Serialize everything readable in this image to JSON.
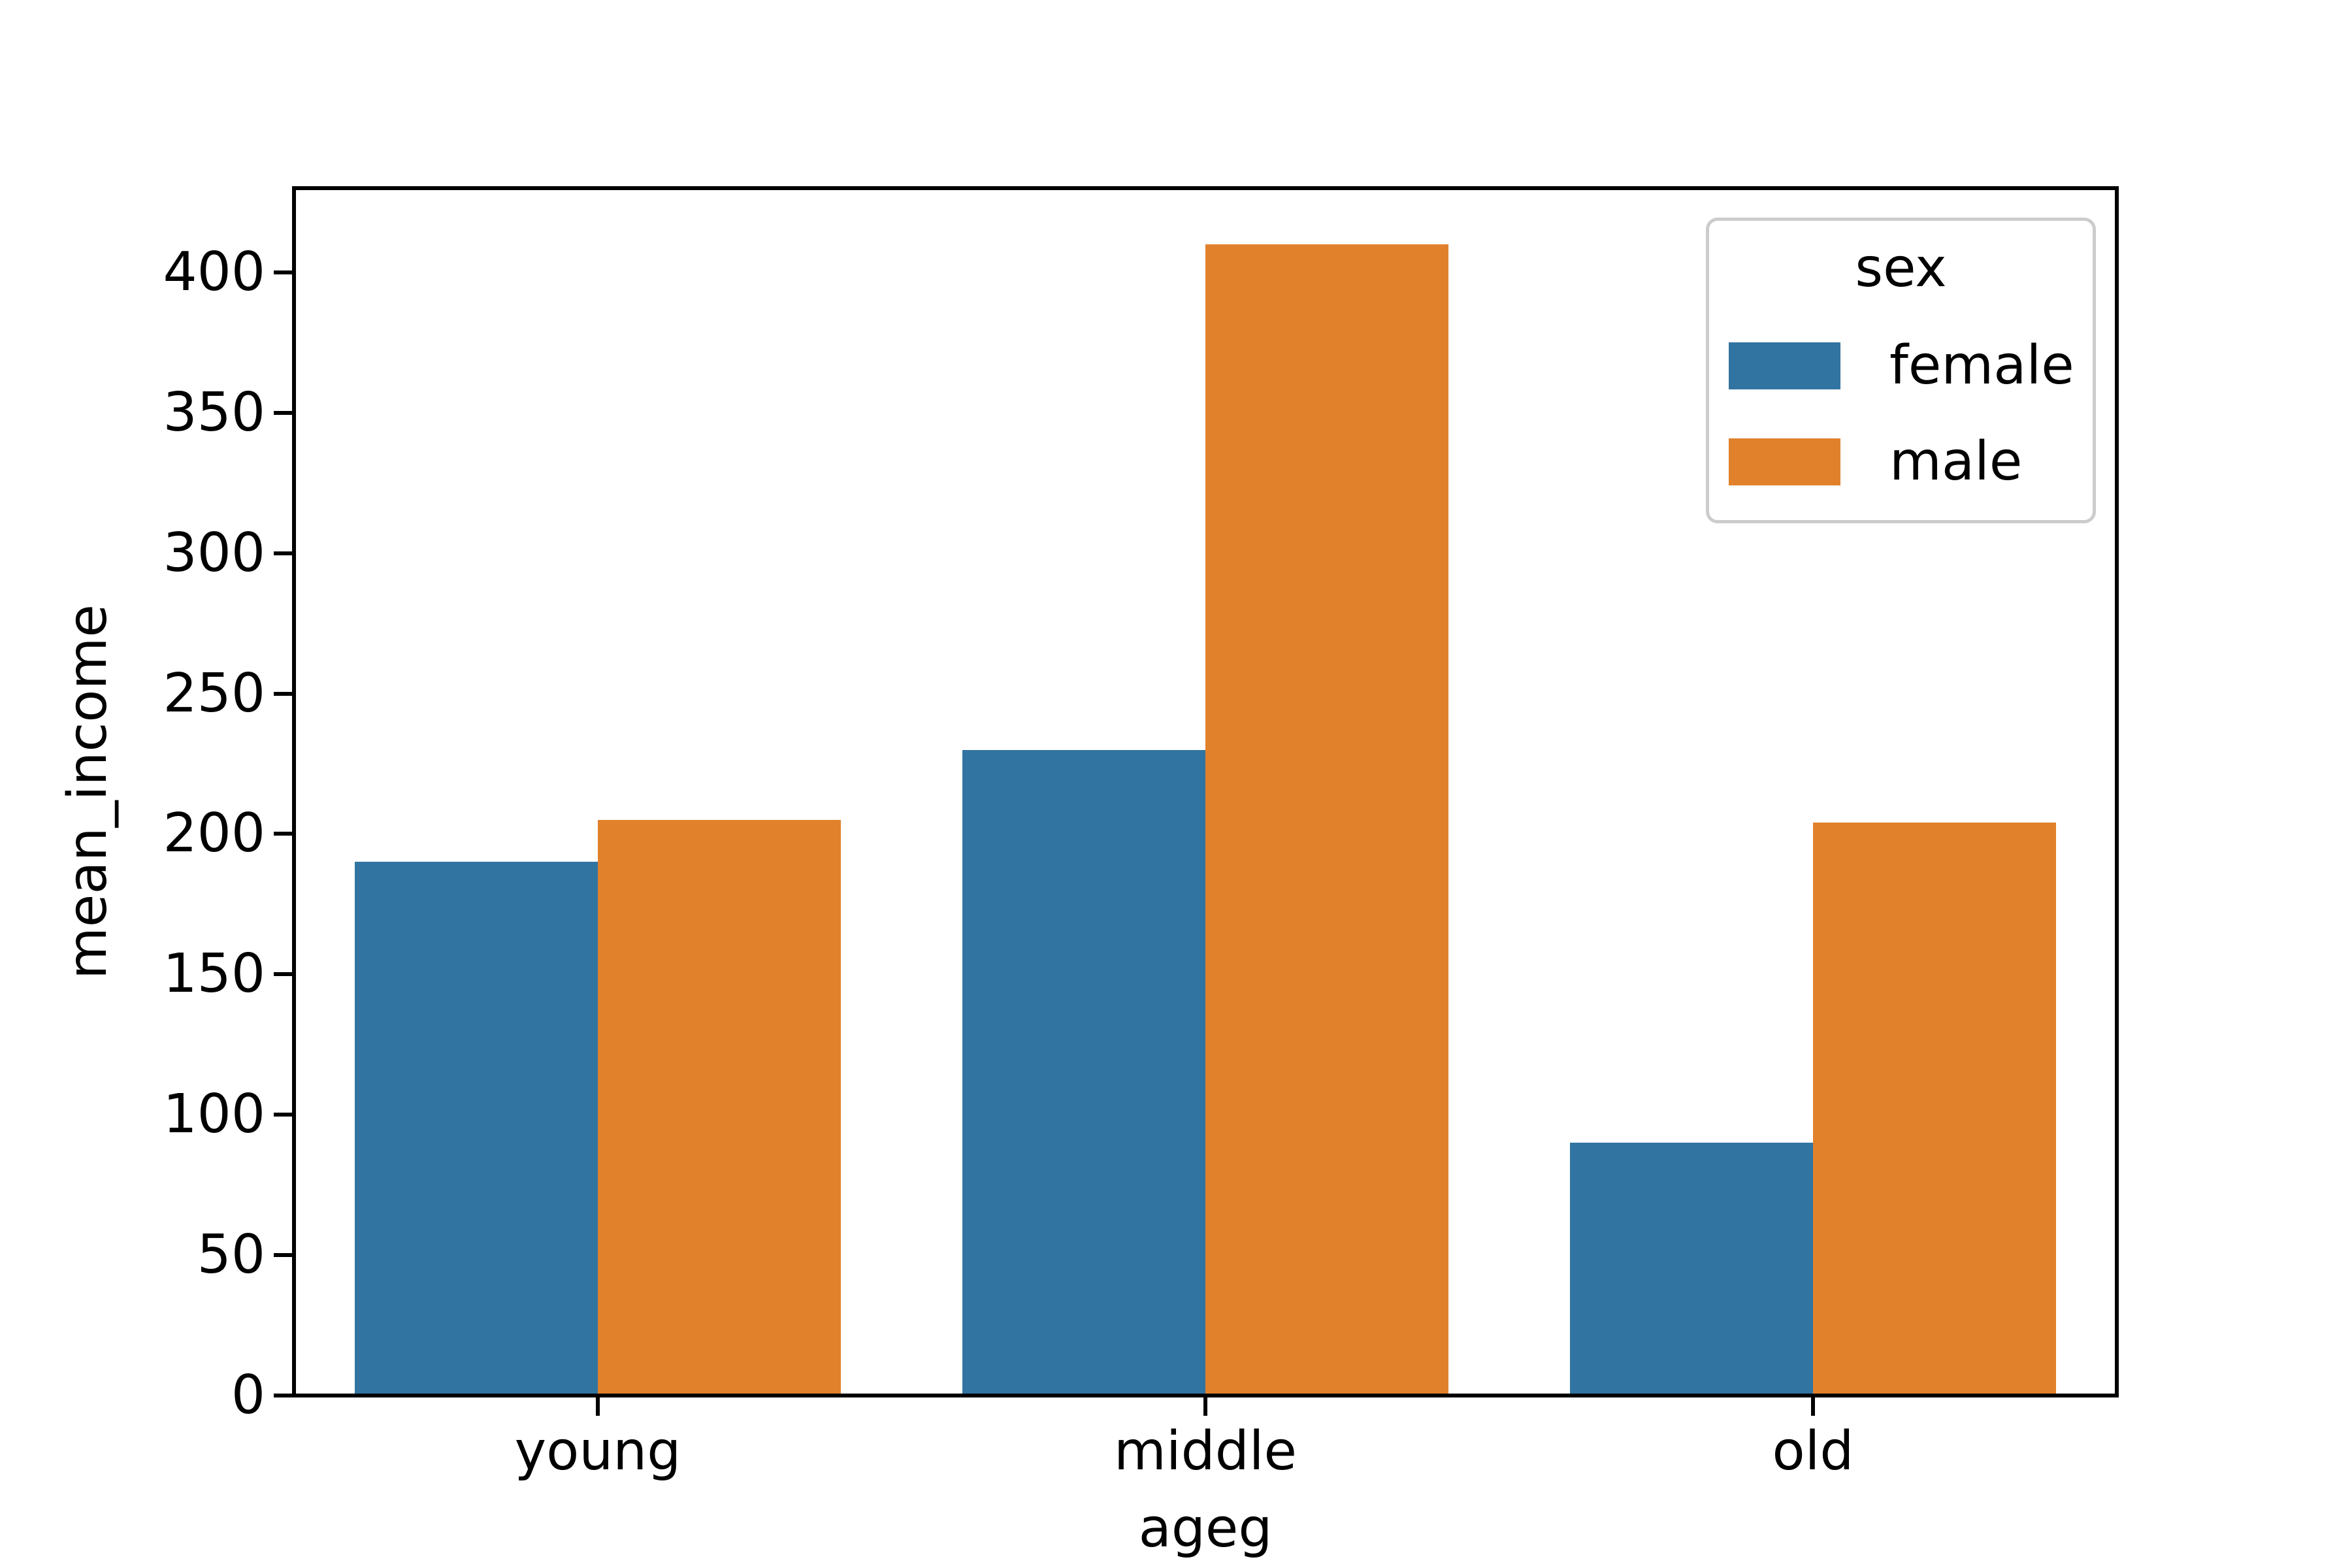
{
  "figure": {
    "background": "#ffffff",
    "axis_color": "#000000"
  },
  "chart_data": {
    "type": "bar",
    "categories": [
      "young",
      "middle",
      "old"
    ],
    "series": [
      {
        "name": "female",
        "color": "#3274a1",
        "values": [
          190,
          230,
          90
        ]
      },
      {
        "name": "male",
        "color": "#e1812c",
        "values": [
          205,
          410,
          204
        ]
      }
    ],
    "title": "",
    "xlabel": "ageg",
    "ylabel": "mean_income",
    "ylim": [
      0,
      430
    ],
    "yticks": [
      0,
      50,
      100,
      150,
      200,
      250,
      300,
      350,
      400
    ],
    "grid": false,
    "legend": {
      "title": "sex",
      "position": "upper right",
      "entries": [
        "female",
        "male"
      ],
      "border_color": "#cccccc"
    }
  }
}
